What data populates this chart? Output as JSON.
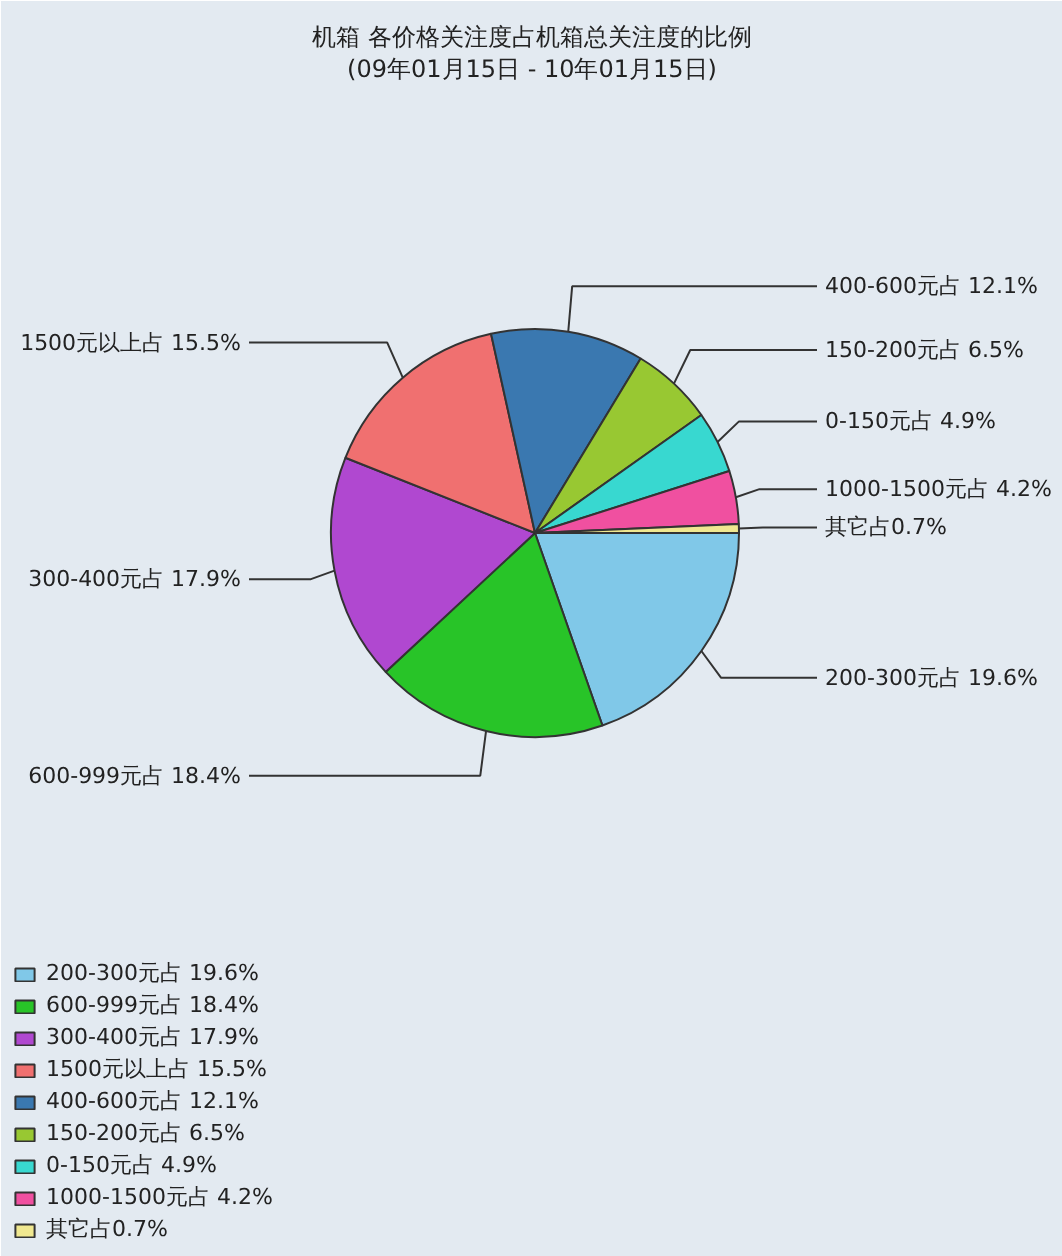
{
  "chart_data": {
    "type": "pie",
    "title": "机箱 各价格关注度占机箱总关注度的比例",
    "subtitle": "(09年01月15日 - 10年01月15日)",
    "categories": [
      "200-300元占 19.6%",
      "600-999元占 18.4%",
      "300-400元占 17.9%",
      "1500元以上占 15.5%",
      "400-600元占 12.1%",
      "150-200元占 6.5%",
      "0-150元占 4.9%",
      "1000-1500元占 4.2%",
      "其它占0.7%"
    ],
    "values": [
      19.6,
      18.4,
      17.9,
      15.5,
      12.1,
      6.5,
      4.9,
      4.2,
      0.7
    ],
    "colors": [
      "#80c8e8",
      "#28c428",
      "#b048d0",
      "#f07070",
      "#3a78b0",
      "#98c832",
      "#38d8d0",
      "#f050a0",
      "#f0e890"
    ],
    "legend": "bottom left"
  }
}
